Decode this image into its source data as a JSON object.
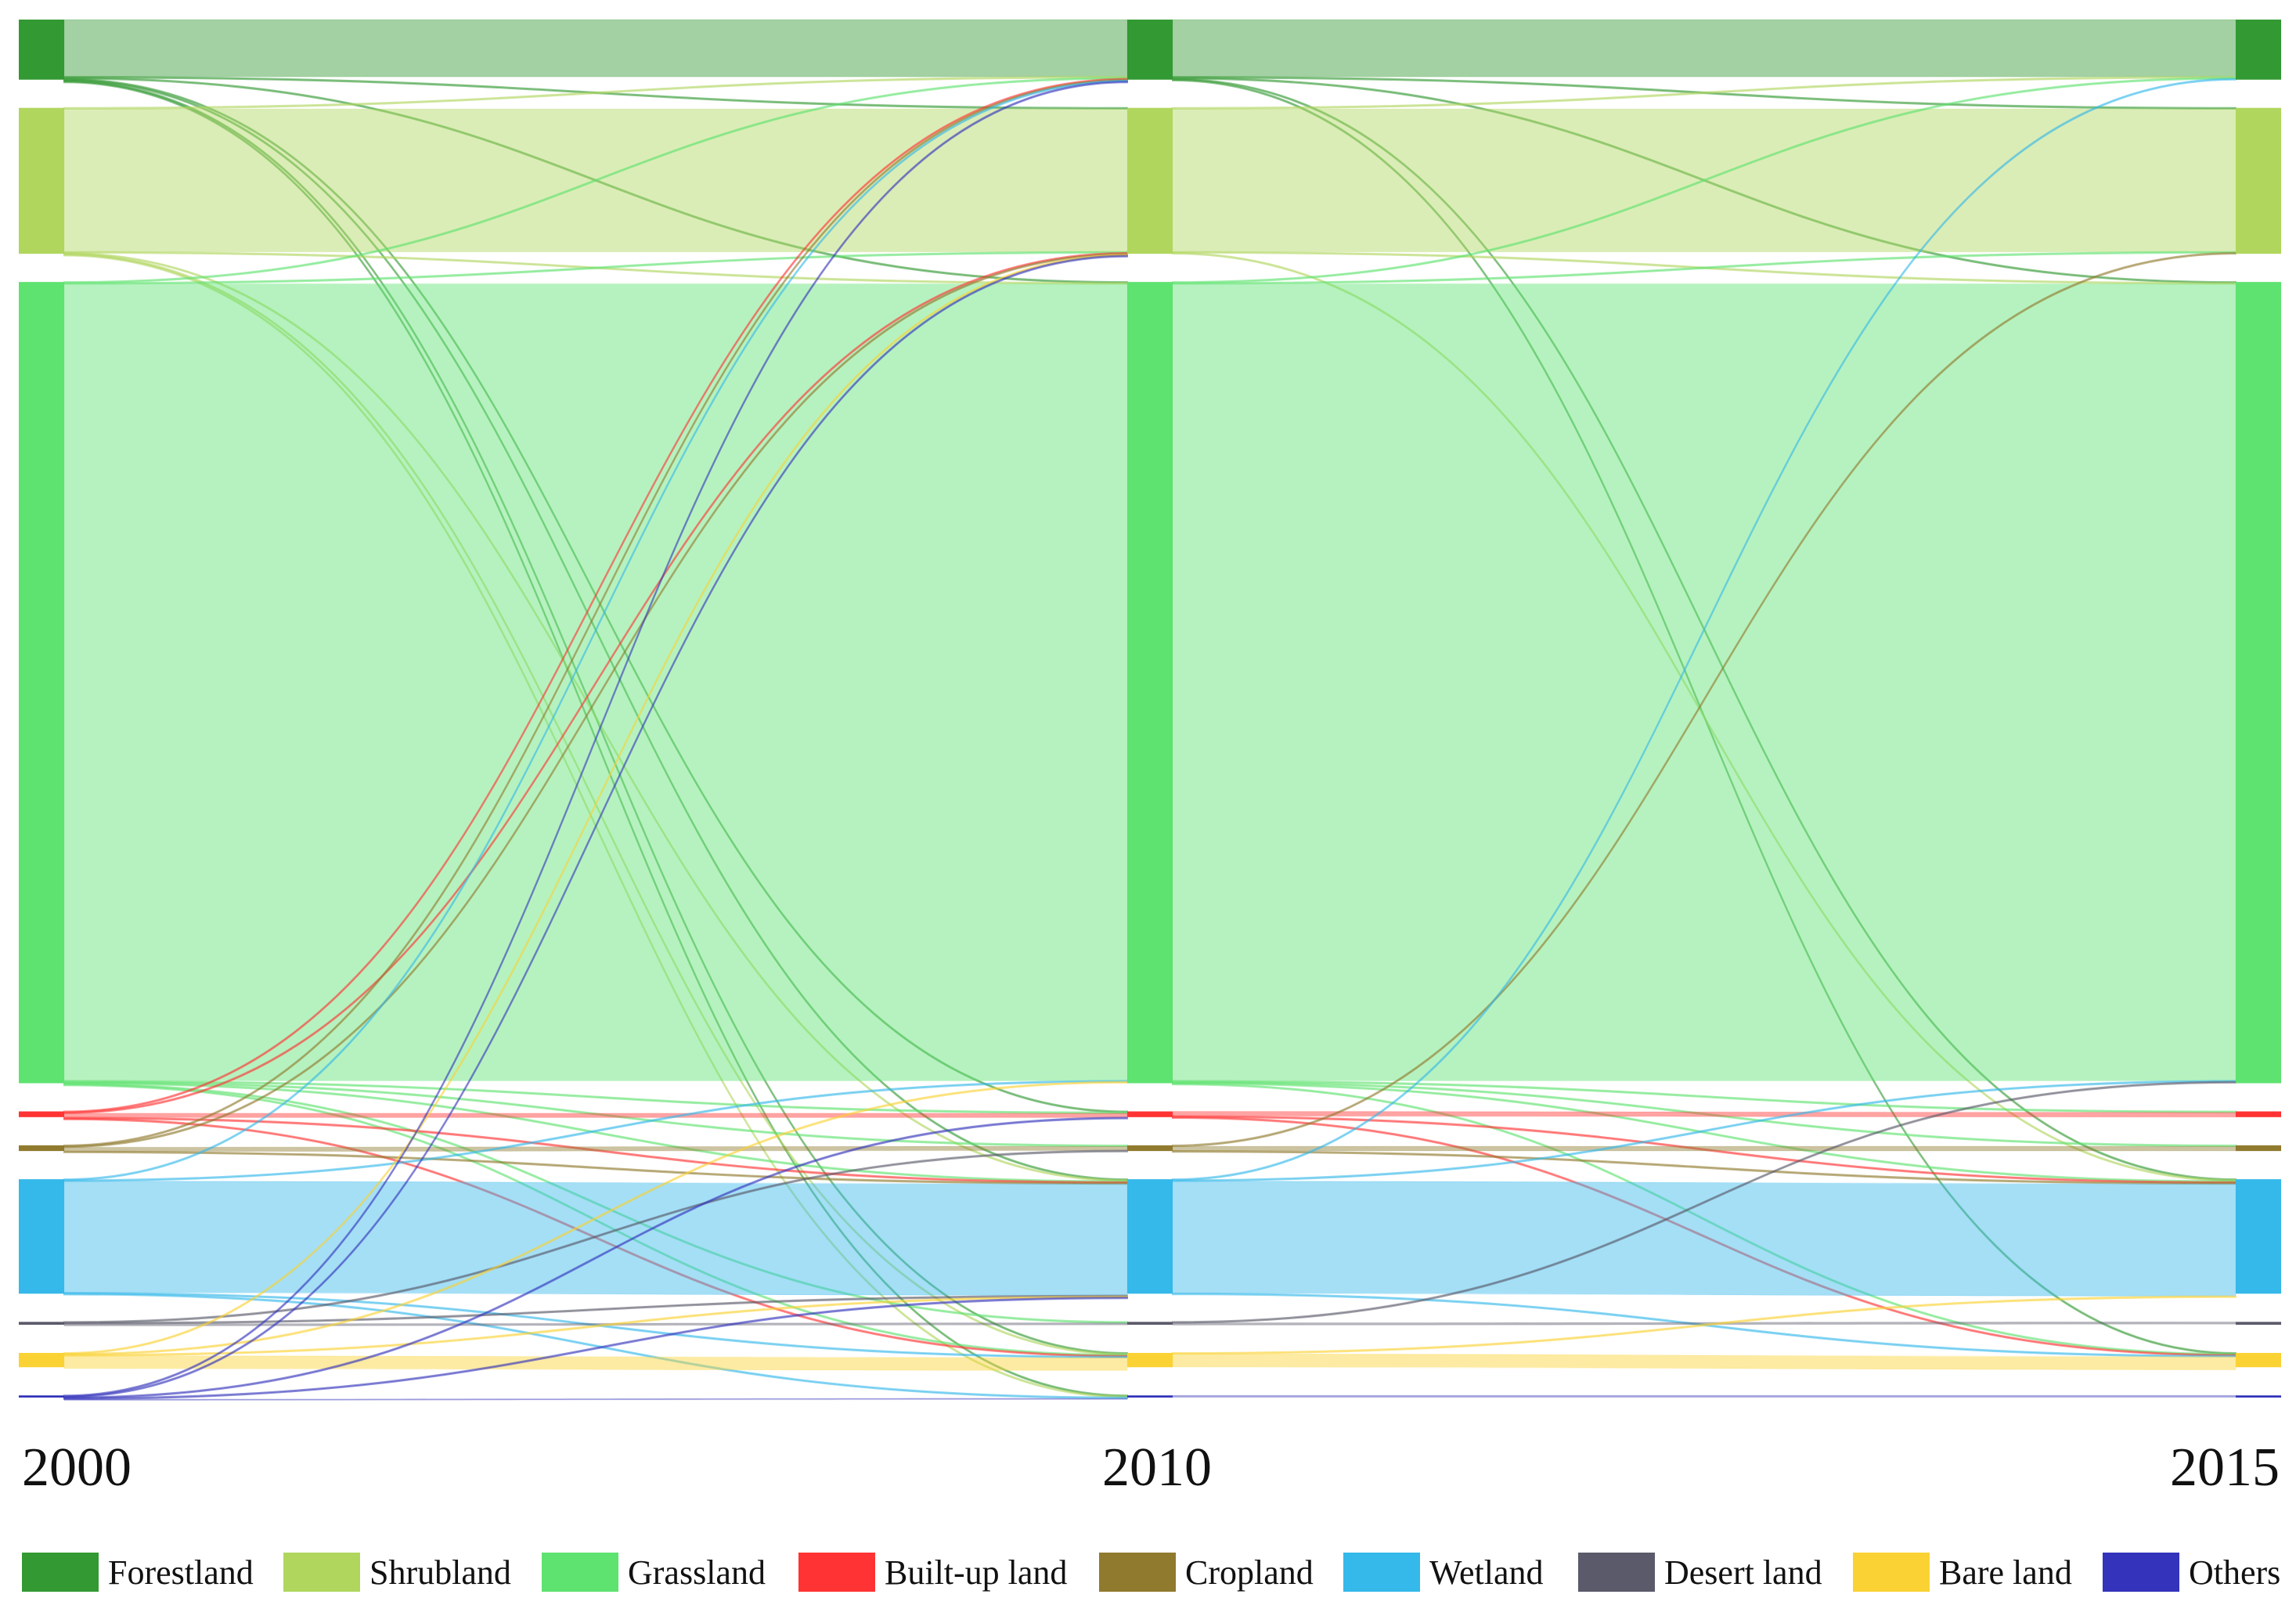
{
  "chart_data": {
    "type": "sankey",
    "title": "",
    "stages": [
      "2000",
      "2010",
      "2015"
    ],
    "categories": [
      {
        "key": "forest",
        "label": "Forestland",
        "color": "#339933"
      },
      {
        "key": "shrub",
        "label": "Shrubland",
        "color": "#b0d65e"
      },
      {
        "key": "grass",
        "label": "Grassland",
        "color": "#5ee270"
      },
      {
        "key": "builtup",
        "label": "Built-up land",
        "color": "#ff3333"
      },
      {
        "key": "crop",
        "label": "Cropland",
        "color": "#8f7a2e"
      },
      {
        "key": "wetland",
        "label": "Wetland",
        "color": "#35b8ea"
      },
      {
        "key": "desert",
        "label": "Desert land",
        "color": "#5a5a6a"
      },
      {
        "key": "bare",
        "label": "Bare land",
        "color": "#fad233"
      },
      {
        "key": "others",
        "label": "Others",
        "color": "#3333bb"
      }
    ],
    "node_values": {
      "2000": {
        "forest": 4.2,
        "shrub": 10.2,
        "grass": 56.0,
        "builtup": 0.4,
        "crop": 0.4,
        "wetland": 8.0,
        "desert": 0.2,
        "bare": 1.0,
        "others": 0.15
      },
      "2010": {
        "forest": 4.2,
        "shrub": 10.2,
        "grass": 56.0,
        "builtup": 0.4,
        "crop": 0.4,
        "wetland": 8.0,
        "desert": 0.2,
        "bare": 1.0,
        "others": 0.15
      },
      "2015": {
        "forest": 4.2,
        "shrub": 10.2,
        "grass": 56.0,
        "builtup": 0.4,
        "crop": 0.4,
        "wetland": 8.0,
        "desert": 0.2,
        "bare": 1.0,
        "others": 0.15
      }
    },
    "flows": [
      {
        "stage": 0,
        "from": "forest",
        "to": "forest",
        "value": 4.0
      },
      {
        "stage": 0,
        "from": "forest",
        "to": "shrub",
        "value": 0.04
      },
      {
        "stage": 0,
        "from": "forest",
        "to": "grass",
        "value": 0.06
      },
      {
        "stage": 0,
        "from": "forest",
        "to": "builtup",
        "value": 0.03
      },
      {
        "stage": 0,
        "from": "forest",
        "to": "wetland",
        "value": 0.03
      },
      {
        "stage": 0,
        "from": "forest",
        "to": "bare",
        "value": 0.03
      },
      {
        "stage": 0,
        "from": "forest",
        "to": "others",
        "value": 0.03
      },
      {
        "stage": 0,
        "from": "shrub",
        "to": "shrub",
        "value": 10.0
      },
      {
        "stage": 0,
        "from": "shrub",
        "to": "forest",
        "value": 0.04
      },
      {
        "stage": 0,
        "from": "shrub",
        "to": "grass",
        "value": 0.05
      },
      {
        "stage": 0,
        "from": "shrub",
        "to": "wetland",
        "value": 0.03
      },
      {
        "stage": 0,
        "from": "shrub",
        "to": "bare",
        "value": 0.03
      },
      {
        "stage": 0,
        "from": "shrub",
        "to": "others",
        "value": 0.03
      },
      {
        "stage": 0,
        "from": "grass",
        "to": "grass",
        "value": 55.7
      },
      {
        "stage": 0,
        "from": "grass",
        "to": "forest",
        "value": 0.05
      },
      {
        "stage": 0,
        "from": "grass",
        "to": "shrub",
        "value": 0.06
      },
      {
        "stage": 0,
        "from": "grass",
        "to": "builtup",
        "value": 0.04
      },
      {
        "stage": 0,
        "from": "grass",
        "to": "crop",
        "value": 0.04
      },
      {
        "stage": 0,
        "from": "grass",
        "to": "wetland",
        "value": 0.05
      },
      {
        "stage": 0,
        "from": "grass",
        "to": "desert",
        "value": 0.03
      },
      {
        "stage": 0,
        "from": "grass",
        "to": "bare",
        "value": 0.03
      },
      {
        "stage": 0,
        "from": "builtup",
        "to": "builtup",
        "value": 0.3
      },
      {
        "stage": 0,
        "from": "builtup",
        "to": "forest",
        "value": 0.02
      },
      {
        "stage": 0,
        "from": "builtup",
        "to": "shrub",
        "value": 0.02
      },
      {
        "stage": 0,
        "from": "builtup",
        "to": "wetland",
        "value": 0.02
      },
      {
        "stage": 0,
        "from": "builtup",
        "to": "bare",
        "value": 0.02
      },
      {
        "stage": 0,
        "from": "crop",
        "to": "crop",
        "value": 0.3
      },
      {
        "stage": 0,
        "from": "crop",
        "to": "forest",
        "value": 0.02
      },
      {
        "stage": 0,
        "from": "crop",
        "to": "shrub",
        "value": 0.02
      },
      {
        "stage": 0,
        "from": "crop",
        "to": "wetland",
        "value": 0.02
      },
      {
        "stage": 0,
        "from": "wetland",
        "to": "wetland",
        "value": 7.8
      },
      {
        "stage": 0,
        "from": "wetland",
        "to": "grass",
        "value": 0.04
      },
      {
        "stage": 0,
        "from": "wetland",
        "to": "forest",
        "value": 0.02
      },
      {
        "stage": 0,
        "from": "wetland",
        "to": "bare",
        "value": 0.03
      },
      {
        "stage": 0,
        "from": "wetland",
        "to": "others",
        "value": 0.02
      },
      {
        "stage": 0,
        "from": "desert",
        "to": "desert",
        "value": 0.15
      },
      {
        "stage": 0,
        "from": "desert",
        "to": "wetland",
        "value": 0.02
      },
      {
        "stage": 0,
        "from": "desert",
        "to": "crop",
        "value": 0.02
      },
      {
        "stage": 0,
        "from": "bare",
        "to": "bare",
        "value": 0.9
      },
      {
        "stage": 0,
        "from": "bare",
        "to": "grass",
        "value": 0.03
      },
      {
        "stage": 0,
        "from": "bare",
        "to": "wetland",
        "value": 0.03
      },
      {
        "stage": 0,
        "from": "bare",
        "to": "shrub",
        "value": 0.02
      },
      {
        "stage": 0,
        "from": "others",
        "to": "others",
        "value": 0.08
      },
      {
        "stage": 0,
        "from": "others",
        "to": "forest",
        "value": 0.02
      },
      {
        "stage": 0,
        "from": "others",
        "to": "shrub",
        "value": 0.02
      },
      {
        "stage": 0,
        "from": "others",
        "to": "wetland",
        "value": 0.02
      },
      {
        "stage": 0,
        "from": "others",
        "to": "builtup",
        "value": 0.02
      },
      {
        "stage": 1,
        "from": "forest",
        "to": "forest",
        "value": 4.0
      },
      {
        "stage": 1,
        "from": "forest",
        "to": "shrub",
        "value": 0.03
      },
      {
        "stage": 1,
        "from": "forest",
        "to": "grass",
        "value": 0.06
      },
      {
        "stage": 1,
        "from": "forest",
        "to": "wetland",
        "value": 0.03
      },
      {
        "stage": 1,
        "from": "forest",
        "to": "bare",
        "value": 0.02
      },
      {
        "stage": 1,
        "from": "shrub",
        "to": "shrub",
        "value": 10.0
      },
      {
        "stage": 1,
        "from": "shrub",
        "to": "forest",
        "value": 0.03
      },
      {
        "stage": 1,
        "from": "shrub",
        "to": "grass",
        "value": 0.05
      },
      {
        "stage": 1,
        "from": "shrub",
        "to": "wetland",
        "value": 0.03
      },
      {
        "stage": 1,
        "from": "grass",
        "to": "grass",
        "value": 55.7
      },
      {
        "stage": 1,
        "from": "grass",
        "to": "forest",
        "value": 0.04
      },
      {
        "stage": 1,
        "from": "grass",
        "to": "shrub",
        "value": 0.05
      },
      {
        "stage": 1,
        "from": "grass",
        "to": "builtup",
        "value": 0.03
      },
      {
        "stage": 1,
        "from": "grass",
        "to": "crop",
        "value": 0.03
      },
      {
        "stage": 1,
        "from": "grass",
        "to": "wetland",
        "value": 0.04
      },
      {
        "stage": 1,
        "from": "grass",
        "to": "bare",
        "value": 0.02
      },
      {
        "stage": 1,
        "from": "builtup",
        "to": "builtup",
        "value": 0.33
      },
      {
        "stage": 1,
        "from": "builtup",
        "to": "wetland",
        "value": 0.02
      },
      {
        "stage": 1,
        "from": "builtup",
        "to": "bare",
        "value": 0.02
      },
      {
        "stage": 1,
        "from": "crop",
        "to": "crop",
        "value": 0.33
      },
      {
        "stage": 1,
        "from": "crop",
        "to": "shrub",
        "value": 0.02
      },
      {
        "stage": 1,
        "from": "crop",
        "to": "wetland",
        "value": 0.02
      },
      {
        "stage": 1,
        "from": "wetland",
        "to": "wetland",
        "value": 7.85
      },
      {
        "stage": 1,
        "from": "wetland",
        "to": "forest",
        "value": 0.02
      },
      {
        "stage": 1,
        "from": "wetland",
        "to": "grass",
        "value": 0.03
      },
      {
        "stage": 1,
        "from": "wetland",
        "to": "bare",
        "value": 0.02
      },
      {
        "stage": 1,
        "from": "desert",
        "to": "desert",
        "value": 0.16
      },
      {
        "stage": 1,
        "from": "desert",
        "to": "grass",
        "value": 0.02
      },
      {
        "stage": 1,
        "from": "bare",
        "to": "bare",
        "value": 0.92
      },
      {
        "stage": 1,
        "from": "bare",
        "to": "wetland",
        "value": 0.02
      },
      {
        "stage": 1,
        "from": "others",
        "to": "others",
        "value": 0.13
      }
    ]
  },
  "year_labels": [
    "2000",
    "2010",
    "2015"
  ],
  "legend": [
    {
      "label": "Forestland",
      "color": "#339933"
    },
    {
      "label": "Shrubland",
      "color": "#b0d65e"
    },
    {
      "label": "Grassland",
      "color": "#5ee270"
    },
    {
      "label": "Built-up land",
      "color": "#ff3333"
    },
    {
      "label": "Cropland",
      "color": "#8f7a2e"
    },
    {
      "label": "Wetland",
      "color": "#35b8ea"
    },
    {
      "label": "Desert land",
      "color": "#5a5a6a"
    },
    {
      "label": "Bare land",
      "color": "#fad233"
    },
    {
      "label": "Others",
      "color": "#3333bb"
    }
  ]
}
